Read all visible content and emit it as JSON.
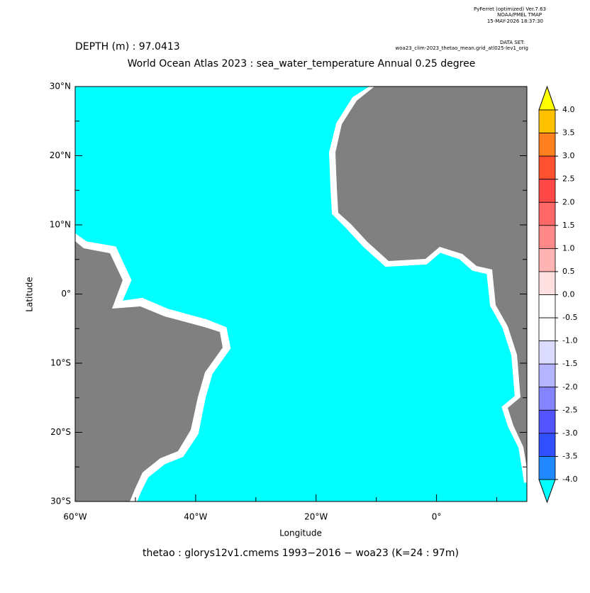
{
  "header": {
    "program": "PyFerret (optimized) Ver.7.63",
    "org": "NOAA/PMEL TMAP",
    "date": "15-MAY-2026 18:37:30",
    "dataset_label": "DATA SET:",
    "dataset": "woa23_clim-2023_thetao_mean.grid_atl025-lev1_orig"
  },
  "depth_label": "DEPTH (m) : 97.0413",
  "title": "World Ocean Atlas 2023 : sea_water_temperature Annual  0.25 degree",
  "map": {
    "xlabel": "Longitude",
    "ylabel": "Latitude",
    "xlim": [
      -60,
      15
    ],
    "ylim": [
      -30,
      30
    ],
    "xticks": [
      {
        "value": -60,
        "label": "60°W"
      },
      {
        "value": -40,
        "label": "40°W"
      },
      {
        "value": -20,
        "label": "20°W"
      },
      {
        "value": 0,
        "label": "0°"
      }
    ],
    "xminor": [
      -50,
      -30,
      -10,
      10
    ],
    "yticks": [
      {
        "value": 30,
        "label": "30°N"
      },
      {
        "value": 20,
        "label": "20°N"
      },
      {
        "value": 10,
        "label": "10°N"
      },
      {
        "value": 0,
        "label": "0°"
      },
      {
        "value": -10,
        "label": "10°S"
      },
      {
        "value": -20,
        "label": "20°S"
      },
      {
        "value": -30,
        "label": "30°S"
      }
    ],
    "yminor": [
      25,
      15,
      5,
      -5,
      -15,
      -25
    ],
    "ocean_color": "#00ffff",
    "land_color": "#808080"
  },
  "colorbar": {
    "levels": [
      {
        "value": 4,
        "label": "4.0"
      },
      {
        "value": 3.5,
        "label": "3.5"
      },
      {
        "value": 3,
        "label": "3.0"
      },
      {
        "value": 2.5,
        "label": "2.5"
      },
      {
        "value": 2,
        "label": "2.0"
      },
      {
        "value": 1.5,
        "label": "1.5"
      },
      {
        "value": 1,
        "label": "1.0"
      },
      {
        "value": 0.5,
        "label": "0.5"
      },
      {
        "value": 0,
        "label": "0.0"
      },
      {
        "value": -0.5,
        "label": "-0.5"
      },
      {
        "value": -1,
        "label": "-1.0"
      },
      {
        "value": -1.5,
        "label": "-1.5"
      },
      {
        "value": -2,
        "label": "-2.0"
      },
      {
        "value": -2.5,
        "label": "-2.5"
      },
      {
        "value": -3,
        "label": "-3.0"
      },
      {
        "value": -3.5,
        "label": "-3.5"
      },
      {
        "value": -4,
        "label": "-4.0"
      }
    ],
    "colors": [
      "#ffc000",
      "#ff8020",
      "#ff5030",
      "#ff4848",
      "#ff6868",
      "#ff8888",
      "#ffb4b4",
      "#ffe0e0",
      "#ffffff",
      "#ffffff",
      "#dcdcff",
      "#b4b4ff",
      "#8484ff",
      "#5454ff",
      "#3050ff",
      "#2088ff"
    ],
    "over_color": "#ffff00",
    "under_color": "#00ffff"
  },
  "footer": "thetao : glorys12v1.cmems 1993−2016      − woa23   (K=24 : 97m)"
}
